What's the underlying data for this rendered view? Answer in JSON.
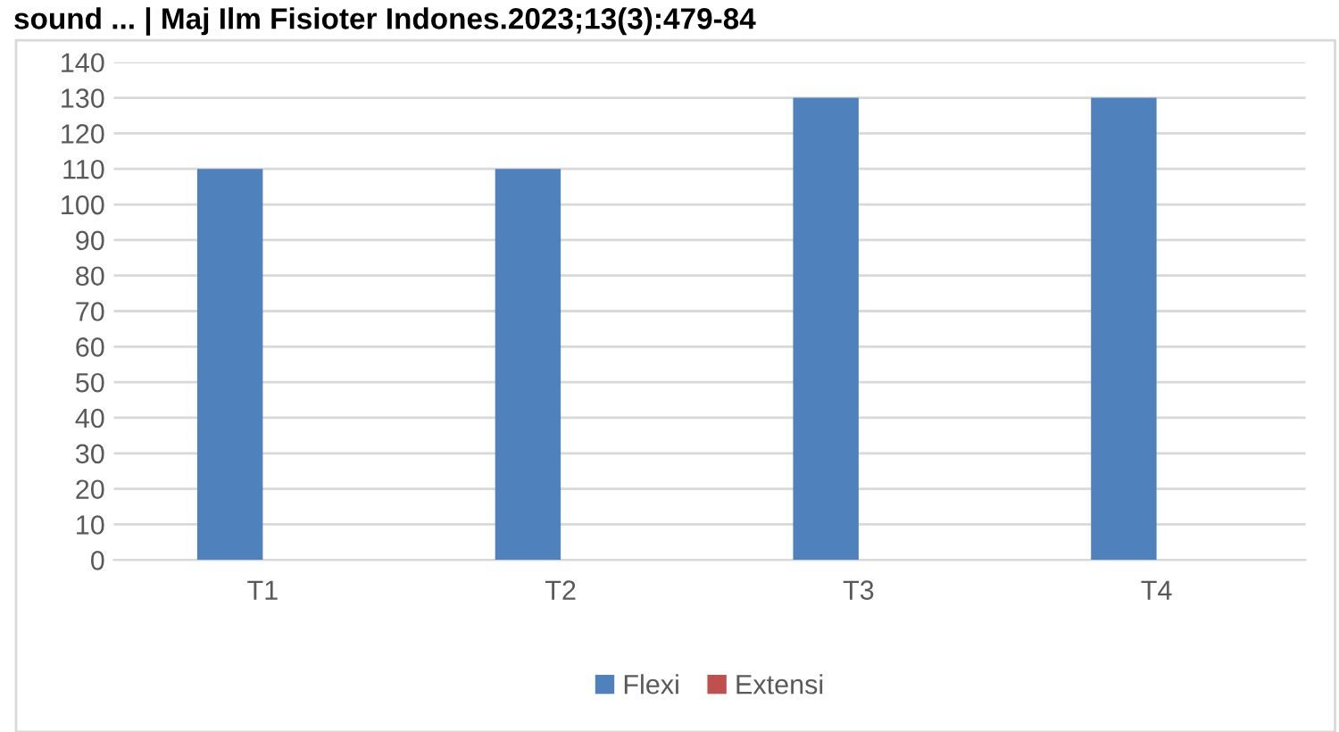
{
  "chart_data": {
    "type": "bar",
    "categories": [
      "T1",
      "T2",
      "T3",
      "T4"
    ],
    "series": [
      {
        "name": "Flexi",
        "color": "#4f81bd",
        "values": [
          110,
          110,
          130,
          130
        ]
      },
      {
        "name": "Extensi",
        "color": "#c0504d",
        "values": [
          0,
          0,
          0,
          0
        ]
      }
    ],
    "ylim": [
      0,
      140
    ],
    "yticks": [
      0,
      10,
      20,
      30,
      40,
      50,
      60,
      70,
      80,
      90,
      100,
      110,
      120,
      130,
      140
    ],
    "grid": "y",
    "legend": "bottom",
    "annotations": [
      "sound ... | Maj Ilm Fisioter Indones.2023;13(3):479-84"
    ]
  }
}
